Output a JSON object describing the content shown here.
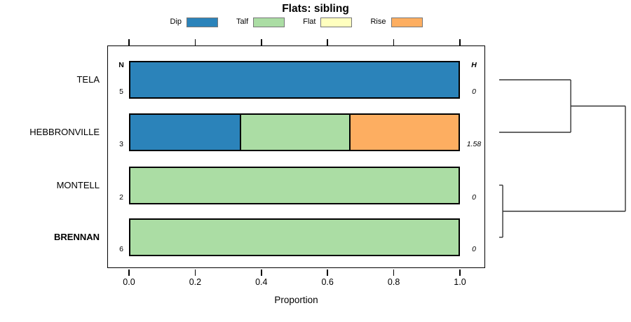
{
  "title": "Flats: sibling",
  "xlabel": "Proportion",
  "columns": {
    "n_header": "N",
    "h_header": "H"
  },
  "legend": [
    {
      "label": "Dip",
      "color": "#2B83BA"
    },
    {
      "label": "Talf",
      "color": "#ABDDA4"
    },
    {
      "label": "Flat",
      "color": "#FFFFBF"
    },
    {
      "label": "Rise",
      "color": "#FDAE61"
    }
  ],
  "rows": [
    {
      "label": "TELA",
      "n": "5",
      "h": "0",
      "bold": false,
      "segments": [
        {
          "name": "Dip",
          "color": "#2B83BA",
          "frac": 1.0
        }
      ]
    },
    {
      "label": "HEBBRONVILLE",
      "n": "3",
      "h": "1.58",
      "bold": false,
      "segments": [
        {
          "name": "Dip",
          "color": "#2B83BA",
          "frac": 0.3333
        },
        {
          "name": "Talf",
          "color": "#ABDDA4",
          "frac": 0.3333
        },
        {
          "name": "Rise",
          "color": "#FDAE61",
          "frac": 0.3334
        }
      ]
    },
    {
      "label": "MONTELL",
      "n": "2",
      "h": "0",
      "bold": false,
      "segments": [
        {
          "name": "Talf",
          "color": "#ABDDA4",
          "frac": 1.0
        }
      ]
    },
    {
      "label": "BRENNAN",
      "n": "6",
      "h": "0",
      "bold": true,
      "segments": [
        {
          "name": "Talf",
          "color": "#ABDDA4",
          "frac": 1.0
        }
      ]
    }
  ],
  "chart_data": {
    "type": "bar",
    "orientation": "horizontal",
    "stacked": true,
    "title": "Flats: sibling",
    "xlabel": "Proportion",
    "xlim": [
      0,
      1
    ],
    "x_tick_labels": [
      "0.0",
      "0.2",
      "0.4",
      "0.6",
      "0.8",
      "1.0"
    ],
    "grid": false,
    "legend_position": "top",
    "categories": [
      "TELA",
      "HEBBRONVILLE",
      "MONTELL",
      "BRENNAN"
    ],
    "series": [
      {
        "name": "Dip",
        "color": "#2B83BA",
        "values": [
          1.0,
          0.3333,
          0,
          0
        ]
      },
      {
        "name": "Talf",
        "color": "#ABDDA4",
        "values": [
          0,
          0.3333,
          1.0,
          1.0
        ]
      },
      {
        "name": "Flat",
        "color": "#FFFFBF",
        "values": [
          0,
          0,
          0,
          0
        ]
      },
      {
        "name": "Rise",
        "color": "#FDAE61",
        "values": [
          0,
          0.3334,
          0,
          0
        ]
      }
    ],
    "n_values": [
      "5",
      "3",
      "2",
      "6"
    ],
    "h_values": [
      "0",
      "1.58",
      "0",
      "0"
    ],
    "bold_category": "BRENNAN",
    "dendrogram": {
      "leaf_order": [
        "TELA",
        "HEBBRONVILLE",
        "MONTELL",
        "BRENNAN"
      ],
      "merges": [
        {
          "leaves": [
            0,
            1
          ],
          "rel_height": 0.567
        },
        {
          "leaves": [
            2,
            3
          ],
          "rel_height": 0.028
        },
        {
          "children": [
            "merge0",
            "merge1"
          ],
          "rel_height": 1.0
        }
      ]
    }
  }
}
